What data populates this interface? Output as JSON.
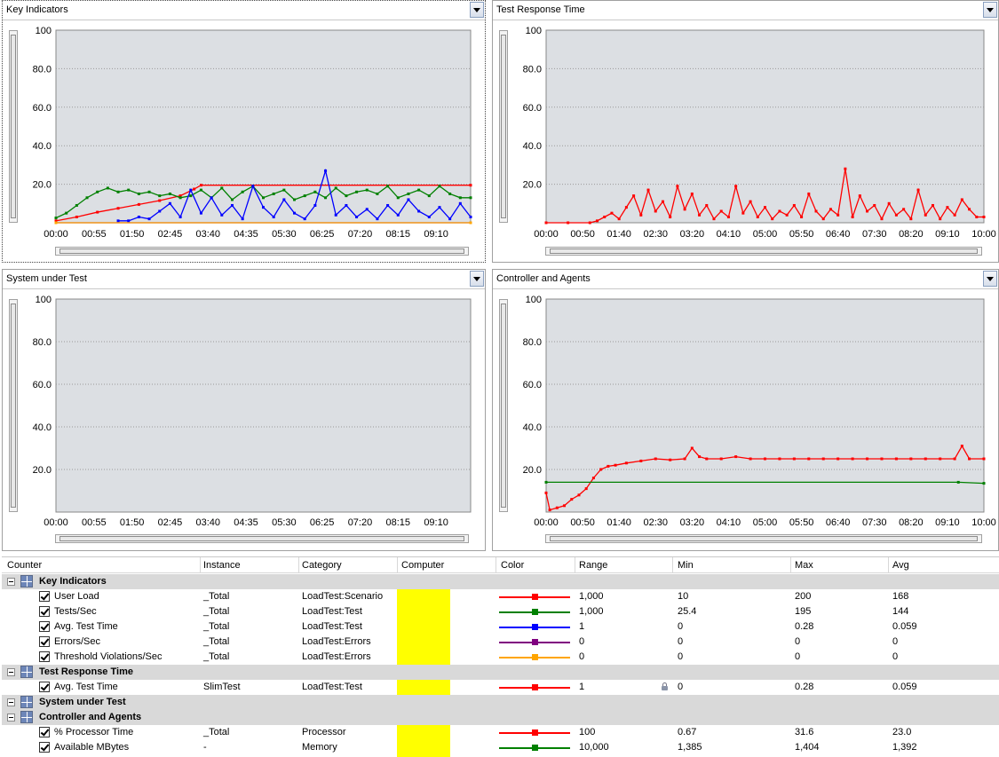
{
  "panels": [
    {
      "id": "key-indicators",
      "title": "Key Indicators",
      "y_ticks": [
        "100",
        "80.0",
        "60.0",
        "40.0",
        "20.0"
      ],
      "x_ticks": [
        "00:00",
        "00:55",
        "01:50",
        "02:45",
        "03:40",
        "04:35",
        "05:30",
        "06:25",
        "07:20",
        "08:15",
        "09:10"
      ],
      "focused": true
    },
    {
      "id": "test-response-time",
      "title": "Test Response Time",
      "y_ticks": [
        "100",
        "80.0",
        "60.0",
        "40.0",
        "20.0"
      ],
      "x_ticks": [
        "00:00",
        "00:50",
        "01:40",
        "02:30",
        "03:20",
        "04:10",
        "05:00",
        "05:50",
        "06:40",
        "07:30",
        "08:20",
        "09:10",
        "10:00"
      ],
      "focused": false
    },
    {
      "id": "system-under-test",
      "title": "System under Test",
      "y_ticks": [
        "100",
        "80.0",
        "60.0",
        "40.0",
        "20.0"
      ],
      "x_ticks": [
        "00:00",
        "00:55",
        "01:50",
        "02:45",
        "03:40",
        "04:35",
        "05:30",
        "06:25",
        "07:20",
        "08:15",
        "09:10"
      ],
      "focused": false
    },
    {
      "id": "controller-and-agents",
      "title": "Controller and Agents",
      "y_ticks": [
        "100",
        "80.0",
        "60.0",
        "40.0",
        "20.0"
      ],
      "x_ticks": [
        "00:00",
        "00:50",
        "01:40",
        "02:30",
        "03:20",
        "04:10",
        "05:00",
        "05:50",
        "06:40",
        "07:30",
        "08:20",
        "09:10",
        "10:00"
      ],
      "focused": false
    }
  ],
  "chart_data": [
    {
      "type": "line",
      "title": "Key Indicators",
      "ylim": [
        0,
        100
      ],
      "x_unit": "seconds",
      "xlim": [
        0,
        600
      ],
      "grid": true,
      "series": [
        {
          "name": "User Load",
          "color": "#ff0000",
          "x": [
            0,
            30,
            60,
            90,
            120,
            150,
            180,
            200,
            210,
            600
          ],
          "y": [
            1,
            3,
            5.5,
            7.5,
            9.5,
            11.5,
            14,
            17.5,
            19.5,
            19.5
          ]
        },
        {
          "name": "Tests/Sec",
          "color": "#008000",
          "x": [
            0,
            15,
            30,
            45,
            60,
            75,
            90,
            105,
            120,
            135,
            150,
            165,
            180,
            195,
            210,
            225,
            240,
            255,
            270,
            285,
            300,
            315,
            330,
            345,
            360,
            375,
            390,
            405,
            420,
            435,
            450,
            465,
            480,
            495,
            510,
            525,
            540,
            555,
            570,
            585,
            600
          ],
          "y": [
            2.5,
            5,
            9,
            13,
            16,
            18,
            16,
            17,
            15,
            16,
            14,
            15,
            13,
            14,
            17,
            13,
            18,
            12,
            16,
            19,
            13,
            15,
            17,
            12,
            14,
            16,
            13,
            18,
            14,
            16,
            17,
            15,
            19,
            13,
            15,
            17,
            14,
            19,
            15,
            13,
            13
          ]
        },
        {
          "name": "Avg. Test Time",
          "color": "#0000ff",
          "x": [
            90,
            105,
            120,
            135,
            150,
            165,
            180,
            195,
            210,
            225,
            240,
            255,
            270,
            285,
            300,
            315,
            330,
            345,
            360,
            375,
            390,
            405,
            420,
            435,
            450,
            465,
            480,
            495,
            510,
            525,
            540,
            555,
            570,
            585,
            600
          ],
          "y": [
            1,
            1,
            3,
            2,
            6,
            10,
            3,
            17,
            5,
            13,
            4,
            9,
            2,
            19,
            8,
            3,
            12,
            5,
            2,
            9,
            27,
            4,
            9,
            3,
            7,
            2,
            9,
            4,
            12,
            6,
            3,
            8,
            2,
            10,
            3
          ]
        },
        {
          "name": "Errors/Sec",
          "color": "#800080",
          "x": [
            0,
            600
          ],
          "y": [
            0,
            0
          ]
        },
        {
          "name": "Threshold Violations/Sec",
          "color": "#ffa500",
          "x": [
            0,
            600
          ],
          "y": [
            0,
            0
          ]
        }
      ]
    },
    {
      "type": "line",
      "title": "Test Response Time",
      "ylim": [
        0,
        100
      ],
      "x_unit": "seconds",
      "xlim": [
        0,
        600
      ],
      "grid": true,
      "series": [
        {
          "name": "Avg. Test Time",
          "color": "#ff0000",
          "x": [
            0,
            30,
            60,
            70,
            80,
            90,
            100,
            110,
            120,
            130,
            140,
            150,
            160,
            170,
            180,
            190,
            200,
            210,
            220,
            230,
            240,
            250,
            260,
            270,
            280,
            290,
            300,
            310,
            320,
            330,
            340,
            350,
            360,
            370,
            380,
            390,
            400,
            410,
            420,
            430,
            440,
            450,
            460,
            470,
            480,
            490,
            500,
            510,
            520,
            530,
            540,
            550,
            560,
            570,
            580,
            590,
            600
          ],
          "y": [
            0,
            0,
            0,
            1,
            3,
            5,
            2,
            8,
            14,
            4,
            17,
            6,
            11,
            3,
            19,
            7,
            15,
            4,
            9,
            2,
            6,
            3,
            19,
            5,
            11,
            3,
            8,
            2,
            6,
            4,
            9,
            3,
            15,
            6,
            2,
            7,
            4,
            28,
            3,
            14,
            6,
            9,
            2,
            10,
            4,
            7,
            2,
            17,
            4,
            9,
            2,
            8,
            4,
            12,
            7,
            3,
            3
          ]
        }
      ]
    },
    {
      "type": "line",
      "title": "System under Test",
      "ylim": [
        0,
        100
      ],
      "x_unit": "seconds",
      "xlim": [
        0,
        600
      ],
      "grid": true,
      "series": []
    },
    {
      "type": "line",
      "title": "Controller and Agents",
      "ylim": [
        0,
        100
      ],
      "x_unit": "seconds",
      "xlim": [
        0,
        600
      ],
      "grid": true,
      "series": [
        {
          "name": "% Processor Time",
          "color": "#ff0000",
          "x": [
            0,
            5,
            15,
            25,
            35,
            45,
            55,
            65,
            75,
            85,
            95,
            110,
            130,
            150,
            170,
            190,
            200,
            210,
            220,
            240,
            260,
            280,
            300,
            320,
            340,
            360,
            380,
            400,
            420,
            440,
            460,
            480,
            500,
            520,
            540,
            560,
            570,
            580,
            600
          ],
          "y": [
            9,
            1,
            2,
            3,
            6,
            8,
            11,
            16,
            20,
            21.5,
            22,
            23,
            24,
            25,
            24.5,
            25,
            30,
            26,
            25,
            25,
            26,
            25,
            25,
            25,
            25,
            25,
            25,
            25,
            25,
            25,
            25,
            25,
            25,
            25,
            25,
            25,
            31,
            25,
            25
          ]
        },
        {
          "name": "Available MBytes",
          "color": "#008000",
          "x": [
            0,
            565,
            600
          ],
          "y": [
            14,
            14,
            13.5
          ]
        }
      ]
    }
  ],
  "legend_table": {
    "headers": [
      "Counter",
      "Instance",
      "Category",
      "Computer",
      "Color",
      "Range",
      "Min",
      "Max",
      "Avg"
    ],
    "rows": [
      {
        "kind": "group",
        "name": "Key Indicators"
      },
      {
        "kind": "item",
        "name": "User Load",
        "instance": "_Total",
        "category": "LoadTest:Scenario",
        "color": "#ff0000",
        "range": "1,000",
        "min": "10",
        "max": "200",
        "avg": "168"
      },
      {
        "kind": "item",
        "name": "Tests/Sec",
        "instance": "_Total",
        "category": "LoadTest:Test",
        "color": "#008000",
        "range": "1,000",
        "min": "25.4",
        "max": "195",
        "avg": "144"
      },
      {
        "kind": "item",
        "name": "Avg. Test Time",
        "instance": "_Total",
        "category": "LoadTest:Test",
        "color": "#0000ff",
        "range": "1",
        "min": "0",
        "max": "0.28",
        "avg": "0.059"
      },
      {
        "kind": "item",
        "name": "Errors/Sec",
        "instance": "_Total",
        "category": "LoadTest:Errors",
        "color": "#800080",
        "range": "0",
        "min": "0",
        "max": "0",
        "avg": "0"
      },
      {
        "kind": "item",
        "name": "Threshold Violations/Sec",
        "instance": "_Total",
        "category": "LoadTest:Errors",
        "color": "#ffa500",
        "range": "0",
        "min": "0",
        "max": "0",
        "avg": "0"
      },
      {
        "kind": "group",
        "name": "Test Response Time"
      },
      {
        "kind": "item",
        "name": "Avg. Test Time",
        "instance": "SlimTest",
        "category": "LoadTest:Test",
        "color": "#ff0000",
        "range": "1",
        "min": "0",
        "max": "0.28",
        "avg": "0.059",
        "locked": true
      },
      {
        "kind": "group",
        "name": "System under Test"
      },
      {
        "kind": "group",
        "name": "Controller and Agents"
      },
      {
        "kind": "item",
        "name": "% Processor Time",
        "instance": "_Total",
        "category": "Processor",
        "color": "#ff0000",
        "range": "100",
        "min": "0.67",
        "max": "31.6",
        "avg": "23.0"
      },
      {
        "kind": "item",
        "name": "Available MBytes",
        "instance": "-",
        "category": "Memory",
        "color": "#008000",
        "range": "10,000",
        "min": "1,385",
        "max": "1,404",
        "avg": "1,392"
      }
    ]
  },
  "computer_highlight_color": "#ffff00"
}
